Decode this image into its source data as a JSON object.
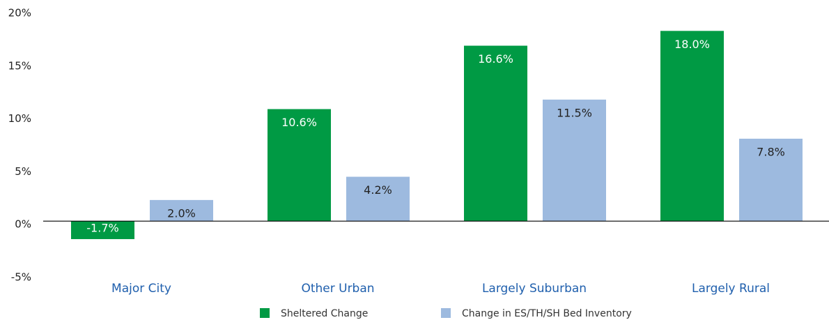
{
  "chart_data": {
    "type": "bar",
    "categories": [
      "Major City",
      "Other Urban",
      "Largely Suburban",
      "Largely Rural"
    ],
    "series": [
      {
        "name": "Sheltered Change",
        "color": "#009a44",
        "values": [
          -1.7,
          10.6,
          16.6,
          18.0
        ],
        "value_labels": [
          "-1.7%",
          "10.6%",
          "16.6%",
          "18.0%"
        ]
      },
      {
        "name": "Change in ES/TH/SH Bed Inventory",
        "color": "#9dbadf",
        "values": [
          2.0,
          4.2,
          11.5,
          7.8
        ],
        "value_labels": [
          "2.0%",
          "4.2%",
          "11.5%",
          "7.8%"
        ]
      }
    ],
    "ylim": [
      -5,
      20
    ],
    "yticks": [
      {
        "value": -5,
        "label": "-5%"
      },
      {
        "value": 0,
        "label": "0%"
      },
      {
        "value": 5,
        "label": "5%"
      },
      {
        "value": 10,
        "label": "10%"
      },
      {
        "value": 15,
        "label": "15%"
      },
      {
        "value": 20,
        "label": "20%"
      }
    ],
    "grid": false
  }
}
